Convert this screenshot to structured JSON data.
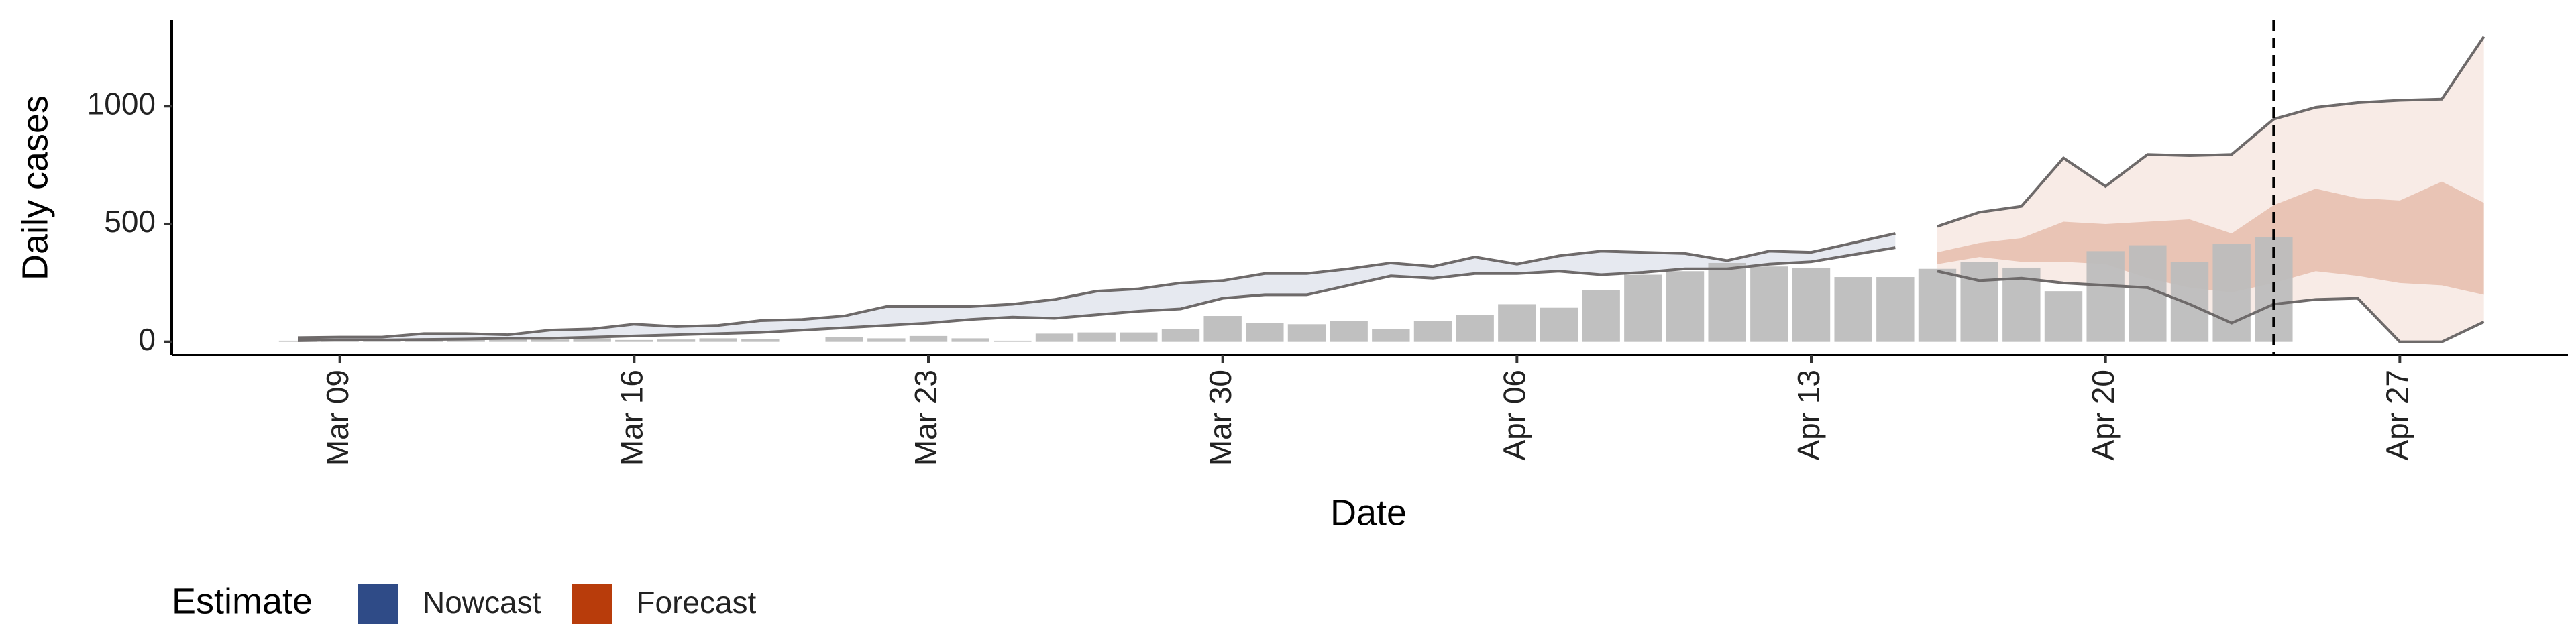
{
  "chart_data": {
    "type": "bar",
    "x_label": "Date",
    "y_label": "Daily cases",
    "x": [
      "Mar 08",
      "Mar 09",
      "Mar 10",
      "Mar 11",
      "Mar 12",
      "Mar 13",
      "Mar 14",
      "Mar 15",
      "Mar 16",
      "Mar 17",
      "Mar 18",
      "Mar 19",
      "Mar 20",
      "Mar 21",
      "Mar 22",
      "Mar 23",
      "Mar 24",
      "Mar 25",
      "Mar 26",
      "Mar 27",
      "Mar 28",
      "Mar 29",
      "Mar 30",
      "Mar 31",
      "Apr 01",
      "Apr 02",
      "Apr 03",
      "Apr 04",
      "Apr 05",
      "Apr 06",
      "Apr 07",
      "Apr 08",
      "Apr 09",
      "Apr 10",
      "Apr 11",
      "Apr 12",
      "Apr 13",
      "Apr 14",
      "Apr 15",
      "Apr 16",
      "Apr 17",
      "Apr 18",
      "Apr 19",
      "Apr 20",
      "Apr 21",
      "Apr 22",
      "Apr 23",
      "Apr 24"
    ],
    "values": [
      5,
      3,
      5,
      8,
      10,
      12,
      10,
      15,
      8,
      10,
      15,
      12,
      0,
      20,
      15,
      25,
      15,
      5,
      35,
      40,
      40,
      55,
      110,
      80,
      75,
      90,
      55,
      90,
      115,
      160,
      145,
      220,
      285,
      300,
      335,
      320,
      315,
      275,
      275,
      310,
      340,
      315,
      215,
      385,
      410,
      340,
      415,
      445
    ],
    "bar_color": "#bdbdbd",
    "ribbons": [
      {
        "name": "Nowcast",
        "color": "#2f4b87",
        "x": [
          "Mar 08",
          "Mar 09",
          "Mar 10",
          "Mar 11",
          "Mar 12",
          "Mar 13",
          "Mar 14",
          "Mar 15",
          "Mar 16",
          "Mar 17",
          "Mar 18",
          "Mar 19",
          "Mar 20",
          "Mar 21",
          "Mar 22",
          "Mar 23",
          "Mar 24",
          "Mar 25",
          "Mar 26",
          "Mar 27",
          "Mar 28",
          "Mar 29",
          "Mar 30",
          "Mar 31",
          "Apr 01",
          "Apr 02",
          "Apr 03",
          "Apr 04",
          "Apr 05",
          "Apr 06",
          "Apr 07",
          "Apr 08",
          "Apr 09",
          "Apr 10",
          "Apr 11",
          "Apr 12",
          "Apr 13",
          "Apr 14",
          "Apr 15"
        ],
        "upper": [
          18,
          20,
          20,
          35,
          35,
          30,
          50,
          55,
          75,
          65,
          70,
          90,
          95,
          110,
          150,
          150,
          150,
          160,
          180,
          215,
          225,
          250,
          260,
          290,
          290,
          310,
          335,
          320,
          360,
          330,
          365,
          385,
          380,
          375,
          345,
          385,
          380,
          420,
          460
        ],
        "lower": [
          5,
          8,
          8,
          10,
          12,
          15,
          15,
          20,
          25,
          30,
          35,
          40,
          50,
          60,
          70,
          80,
          95,
          105,
          100,
          115,
          130,
          140,
          185,
          200,
          200,
          240,
          280,
          270,
          290,
          290,
          300,
          285,
          295,
          310,
          310,
          330,
          340,
          370,
          400
        ]
      },
      {
        "name": "Forecast",
        "color": "#b83c0b",
        "x": [
          "Apr 16",
          "Apr 17",
          "Apr 18",
          "Apr 19",
          "Apr 20",
          "Apr 21",
          "Apr 22",
          "Apr 23",
          "Apr 24",
          "Apr 25",
          "Apr 26",
          "Apr 27",
          "Apr 28",
          "Apr 29"
        ],
        "upper": [
          490,
          550,
          575,
          780,
          660,
          795,
          790,
          795,
          945,
          995,
          1015,
          1025,
          1030,
          1295
        ],
        "lower": [
          300,
          260,
          270,
          250,
          240,
          230,
          160,
          80,
          160,
          180,
          185,
          0,
          0,
          85
        ],
        "inner_upper": [
          380,
          420,
          440,
          510,
          500,
          510,
          520,
          460,
          580,
          650,
          610,
          600,
          680,
          590
        ],
        "inner_lower": [
          330,
          360,
          340,
          340,
          330,
          270,
          230,
          210,
          250,
          300,
          280,
          250,
          240,
          200
        ]
      }
    ],
    "legend_title": "Estimate",
    "vline": "Apr 24",
    "xlim": [
      "Mar 05",
      "May 01"
    ],
    "xticks": [
      "Mar 09",
      "Mar 16",
      "Mar 23",
      "Mar 30",
      "Apr 06",
      "Apr 13",
      "Apr 20",
      "Apr 27"
    ],
    "ylim": [
      -55,
      1365
    ],
    "yticks": [
      0,
      500,
      1000
    ]
  }
}
